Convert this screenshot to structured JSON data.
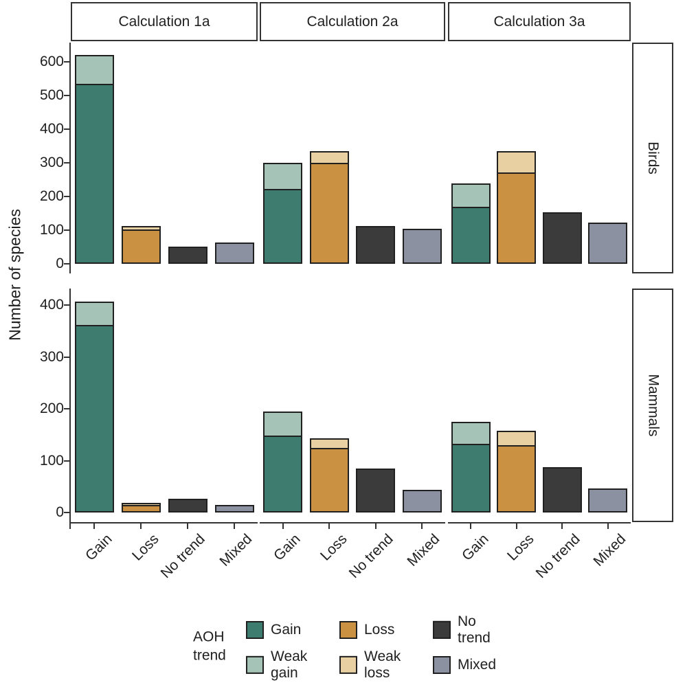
{
  "chart_data": {
    "type": "bar",
    "stacked": true,
    "title": "",
    "ylabel": "Number of species",
    "xlabel": "",
    "grid": false,
    "legend_position": "bottom",
    "legend_title": "AOH\ntrend",
    "col_facets": [
      "Calculation 1a",
      "Calculation 2a",
      "Calculation 3a"
    ],
    "row_facets": [
      "Birds",
      "Mammals"
    ],
    "categories": [
      "Gain",
      "Loss",
      "No trend",
      "Mixed"
    ],
    "legend_entries": [
      {
        "key": "gain",
        "label": "Gain",
        "color": "#3D7C6F"
      },
      {
        "key": "weak_gain",
        "label": "Weak\ngain",
        "color": "#A6C3B8"
      },
      {
        "key": "loss",
        "label": "Loss",
        "color": "#CB9142"
      },
      {
        "key": "weak_loss",
        "label": "Weak\nloss",
        "color": "#E9D0A3"
      },
      {
        "key": "no_trend",
        "label": "No\ntrend",
        "color": "#3B3B3B"
      },
      {
        "key": "mixed",
        "label": "Mixed",
        "color": "#8C91A2"
      }
    ],
    "rows": [
      {
        "facet": "Birds",
        "ylim": [
          0,
          650
        ],
        "yticks": [
          0,
          100,
          200,
          300,
          400,
          500,
          600
        ],
        "panels": [
          {
            "facet": "Calculation 1a",
            "bars": [
              {
                "category": "Gain",
                "segments": [
                  {
                    "key": "gain",
                    "value": 535
                  },
                  {
                    "key": "weak_gain",
                    "value": 85
                  }
                ]
              },
              {
                "category": "Loss",
                "segments": [
                  {
                    "key": "loss",
                    "value": 102
                  },
                  {
                    "key": "weak_loss",
                    "value": 11
                  }
                ]
              },
              {
                "category": "No trend",
                "segments": [
                  {
                    "key": "no_trend",
                    "value": 52
                  }
                ]
              },
              {
                "category": "Mixed",
                "segments": [
                  {
                    "key": "mixed",
                    "value": 64
                  }
                ]
              }
            ]
          },
          {
            "facet": "Calculation 2a",
            "bars": [
              {
                "category": "Gain",
                "segments": [
                  {
                    "key": "gain",
                    "value": 222
                  },
                  {
                    "key": "weak_gain",
                    "value": 78
                  }
                ]
              },
              {
                "category": "Loss",
                "segments": [
                  {
                    "key": "loss",
                    "value": 300
                  },
                  {
                    "key": "weak_loss",
                    "value": 35
                  }
                ]
              },
              {
                "category": "No trend",
                "segments": [
                  {
                    "key": "no_trend",
                    "value": 112
                  }
                ]
              },
              {
                "category": "Mixed",
                "segments": [
                  {
                    "key": "mixed",
                    "value": 105
                  }
                ]
              }
            ]
          },
          {
            "facet": "Calculation 3a",
            "bars": [
              {
                "category": "Gain",
                "segments": [
                  {
                    "key": "gain",
                    "value": 170
                  },
                  {
                    "key": "weak_gain",
                    "value": 68
                  }
                ]
              },
              {
                "category": "Loss",
                "segments": [
                  {
                    "key": "loss",
                    "value": 272
                  },
                  {
                    "key": "weak_loss",
                    "value": 63
                  }
                ]
              },
              {
                "category": "No trend",
                "segments": [
                  {
                    "key": "no_trend",
                    "value": 154
                  }
                ]
              },
              {
                "category": "Mixed",
                "segments": [
                  {
                    "key": "mixed",
                    "value": 122
                  }
                ]
              }
            ]
          }
        ]
      },
      {
        "facet": "Mammals",
        "ylim": [
          0,
          430
        ],
        "yticks": [
          0,
          100,
          200,
          300,
          400
        ],
        "panels": [
          {
            "facet": "Calculation 1a",
            "bars": [
              {
                "category": "Gain",
                "segments": [
                  {
                    "key": "gain",
                    "value": 362
                  },
                  {
                    "key": "weak_gain",
                    "value": 45
                  }
                ]
              },
              {
                "category": "Loss",
                "segments": [
                  {
                    "key": "loss",
                    "value": 14
                  },
                  {
                    "key": "weak_loss",
                    "value": 5
                  }
                ]
              },
              {
                "category": "No trend",
                "segments": [
                  {
                    "key": "no_trend",
                    "value": 26
                  }
                ]
              },
              {
                "category": "Mixed",
                "segments": [
                  {
                    "key": "mixed",
                    "value": 15
                  }
                ]
              }
            ]
          },
          {
            "facet": "Calculation 2a",
            "bars": [
              {
                "category": "Gain",
                "segments": [
                  {
                    "key": "gain",
                    "value": 148
                  },
                  {
                    "key": "weak_gain",
                    "value": 47
                  }
                ]
              },
              {
                "category": "Loss",
                "segments": [
                  {
                    "key": "loss",
                    "value": 125
                  },
                  {
                    "key": "weak_loss",
                    "value": 18
                  }
                ]
              },
              {
                "category": "No trend",
                "segments": [
                  {
                    "key": "no_trend",
                    "value": 85
                  }
                ]
              },
              {
                "category": "Mixed",
                "segments": [
                  {
                    "key": "mixed",
                    "value": 44
                  }
                ]
              }
            ]
          },
          {
            "facet": "Calculation 3a",
            "bars": [
              {
                "category": "Gain",
                "segments": [
                  {
                    "key": "gain",
                    "value": 133
                  },
                  {
                    "key": "weak_gain",
                    "value": 42
                  }
                ]
              },
              {
                "category": "Loss",
                "segments": [
                  {
                    "key": "loss",
                    "value": 130
                  },
                  {
                    "key": "weak_loss",
                    "value": 27
                  }
                ]
              },
              {
                "category": "No trend",
                "segments": [
                  {
                    "key": "no_trend",
                    "value": 88
                  }
                ]
              },
              {
                "category": "Mixed",
                "segments": [
                  {
                    "key": "mixed",
                    "value": 46
                  }
                ]
              }
            ]
          }
        ]
      }
    ]
  }
}
